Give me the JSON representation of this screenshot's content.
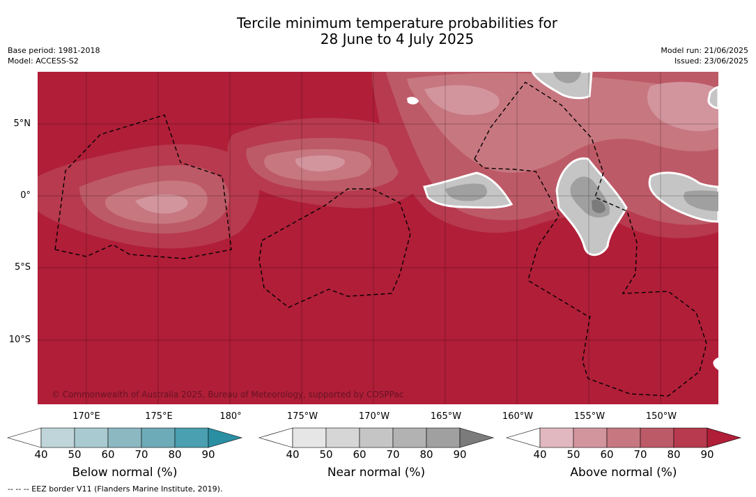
{
  "title_line1": "Tercile minimum temperature probabilities for",
  "title_line2": "28 June to 4 July 2025",
  "base_period": "Base period: 1981-2018",
  "model": "Model: ACCESS-S2",
  "model_run": "Model run: 21/06/2025",
  "issued": "Issued: 23/06/2025",
  "lat_labels": [
    "5°N",
    "0°",
    "5°S",
    "10°S"
  ],
  "lon_labels": [
    "170°E",
    "175°E",
    "180°",
    "175°W",
    "170°W",
    "165°W",
    "160°W",
    "155°W",
    "150°W"
  ],
  "copyright": "© Commonwealth of Australia 2025, Bureau of Meteorology, supported by COSPPac",
  "colorbars": [
    {
      "title": "Below normal (%)",
      "ticks": [
        "40",
        "50",
        "60",
        "70",
        "80",
        "90"
      ],
      "colors": [
        "#ffffff",
        "#bfd5da",
        "#a9cad0",
        "#8cb8c2",
        "#6eabb8",
        "#4a9fb0",
        "#2b8fa3"
      ]
    },
    {
      "title": "Near normal (%)",
      "ticks": [
        "40",
        "50",
        "60",
        "70",
        "80",
        "90"
      ],
      "colors": [
        "#ffffff",
        "#e6e6e6",
        "#d6d6d6",
        "#c5c5c5",
        "#b2b2b2",
        "#a0a0a0",
        "#7b7b7b"
      ]
    },
    {
      "title": "Above normal (%)",
      "ticks": [
        "40",
        "50",
        "60",
        "70",
        "80",
        "90"
      ],
      "colors": [
        "#ffffff",
        "#e1b8bf",
        "#d3959d",
        "#c77780",
        "#bd5a67",
        "#b73a4e",
        "#b01e38"
      ]
    }
  ],
  "footnote": "--  --  -- EEZ border V11 (Flanders Marine Institute, 2019).",
  "map_colors": {
    "above_90": "#b01e38",
    "above_80": "#b73a4e",
    "above_70": "#bd5a67",
    "above_60": "#c77780",
    "above_50": "#d3959d",
    "white": "#ffffff",
    "near_60": "#c5c5c5",
    "near_70": "#b2b2b2",
    "near_80": "#a0a0a0",
    "near_90": "#7b7b7b"
  }
}
